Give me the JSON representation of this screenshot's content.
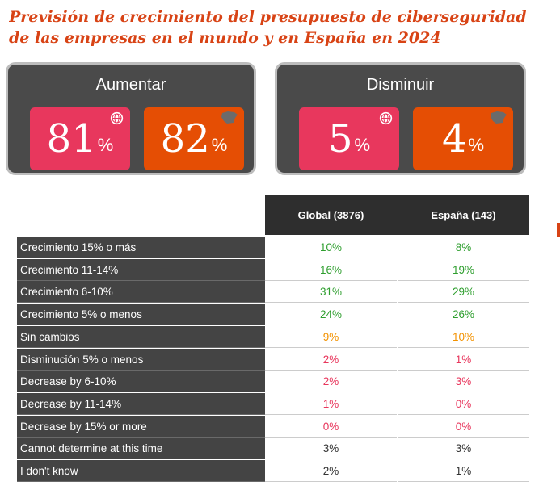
{
  "title_lines": [
    "Previsión de crecimiento del presupuesto de ciberseguridad",
    "de las empresas en el mundo y en España en 2024"
  ],
  "panels": [
    {
      "title": "Aumentar",
      "global_value": "81",
      "spain_value": "82",
      "unit": "%"
    },
    {
      "title": "Disminuir",
      "global_value": "5",
      "spain_value": "4",
      "unit": "%"
    }
  ],
  "colors": {
    "title": "#d84315",
    "global_card": "#e8375d",
    "spain_card": "#e54e04",
    "growth": "#2e9e2e",
    "neutral": "#f39200",
    "decline": "#e8375d",
    "other": "#333333"
  },
  "chart_data": {
    "type": "table",
    "columns": [
      "Global  (3876)",
      "España (143)"
    ],
    "rows": [
      {
        "label": "Crecimiento 15% o más",
        "values": [
          "10%",
          "8%"
        ],
        "tone": "growth"
      },
      {
        "label": "Crecimiento 11-14%",
        "values": [
          "16%",
          "19%"
        ],
        "tone": "growth"
      },
      {
        "label": "Crecimiento 6-10%",
        "values": [
          "31%",
          "29%"
        ],
        "tone": "growth"
      },
      {
        "label": "Crecimiento 5% o menos",
        "values": [
          "24%",
          "26%"
        ],
        "tone": "growth"
      },
      {
        "label": "Sin cambios",
        "values": [
          "9%",
          "10%"
        ],
        "tone": "neutral"
      },
      {
        "label": "Disminución 5% o menos",
        "values": [
          "2%",
          "1%"
        ],
        "tone": "decline"
      },
      {
        "label": "Decrease by 6-10%",
        "values": [
          "2%",
          "3%"
        ],
        "tone": "decline"
      },
      {
        "label": "Decrease by 11-14%",
        "values": [
          "1%",
          "0%"
        ],
        "tone": "decline"
      },
      {
        "label": "Decrease by 15% or more",
        "values": [
          "0%",
          "0%"
        ],
        "tone": "decline"
      },
      {
        "label": "Cannot determine at this time",
        "values": [
          "3%",
          "3%"
        ],
        "tone": "other"
      },
      {
        "label": "I don't know",
        "values": [
          "2%",
          "1%"
        ],
        "tone": "other"
      }
    ]
  }
}
